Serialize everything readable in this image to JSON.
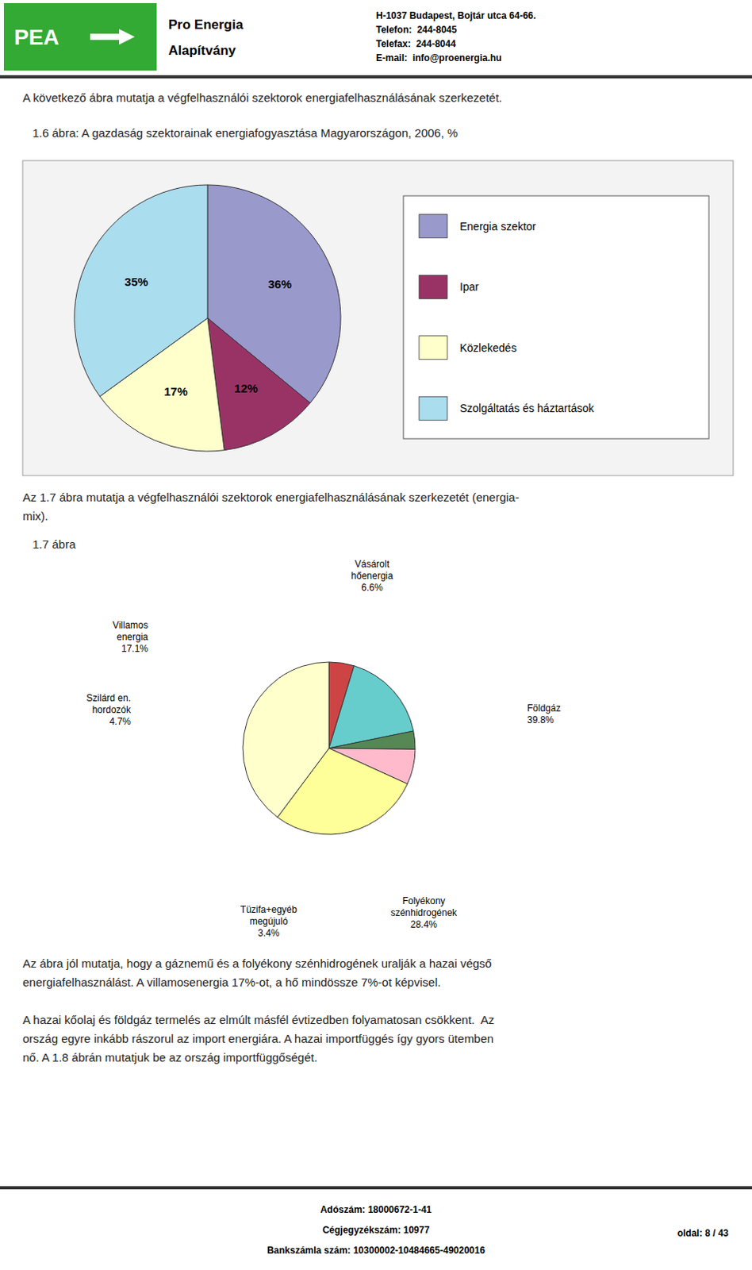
{
  "page": {
    "logo_text": "PEA",
    "org_name_1": "Pro Energia",
    "org_name_2": "Alapítvány",
    "header_addr": [
      "H-1037 Budapest, Bojtár utca 64-66.",
      "Telefon:  244-8045",
      "Telefax:  244-8044",
      "E-mail:  info@proenergia.hu"
    ],
    "intro_text": "A következő ábra mutatja a végfelhasználói szektorok energiafelhasználásának szerkezetét.",
    "between_text": [
      "Az 1.7 ábra mutatja a végfelhasználói szektorok energiafelhasználásának szerkezetét (energia-",
      "mix)."
    ],
    "bottom_paragraphs": [
      [
        "Az ábra jól mutatja, hogy a gáznemű és a folyékony szénhidrogének uralják a hazai végső",
        "energiafelhasználást. A villamosenergia 17%-ot, a hő mindössze 7%-ot képvisel."
      ],
      [
        "A hazai kőolaj és földgáz termelés az elmúlt másfél évtizedben folyamatosan csökkent.  Az",
        "ország egyre inkább rászorul az import energiára. A hazai importfüggés így gyors ütemben",
        "nő. A 1.8 ábrán mutatjuk be az ország importfüggőségét."
      ]
    ],
    "footer_lines": [
      "Adószám: 18000672-1-41",
      "Cégjegyzékszám: 10977",
      "Bankszámla szám: 10300002-10484665-49020016"
    ],
    "footer_right": "oldal: 8 / 43"
  },
  "chart_data": [
    {
      "type": "pie",
      "title": "   1.6 ábra: A gazdaság szektorainak energiafogyasztása Magyarországon, 2006, %",
      "categories": [
        "Energia szektor",
        "Ipar",
        "Közlekedés",
        "Szolgáltatás és háztartások"
      ],
      "values": [
        36,
        12,
        17,
        35
      ],
      "value_labels": [
        "36%",
        "12%",
        "17%",
        "35%"
      ],
      "colors": [
        "#9999cc",
        "#993366",
        "#ffffcc",
        "#aaddee"
      ],
      "data_labels": true,
      "legend": "right"
    },
    {
      "type": "pie",
      "title": "   1.7 ábra",
      "categories": [
        "Szilárd en.\nhordozók",
        "Villamos\nenergia",
        "Tüzifa+egyéb\nmegújuló",
        "Vásárolt\nhőenergia",
        "Folyékony\nszénhidrogének",
        "Földgáz"
      ],
      "values": [
        4.7,
        17.1,
        3.4,
        6.6,
        28.4,
        39.8
      ],
      "value_labels": [
        "4.7%",
        "17.1%",
        "3.4%",
        "6.6%",
        "28.4%",
        "39.8%"
      ],
      "colors": [
        "#cc4444",
        "#66cccc",
        "#558855",
        "#ffbbcc",
        "#ffff99",
        "#ffffcc"
      ],
      "data_labels": true
    }
  ]
}
